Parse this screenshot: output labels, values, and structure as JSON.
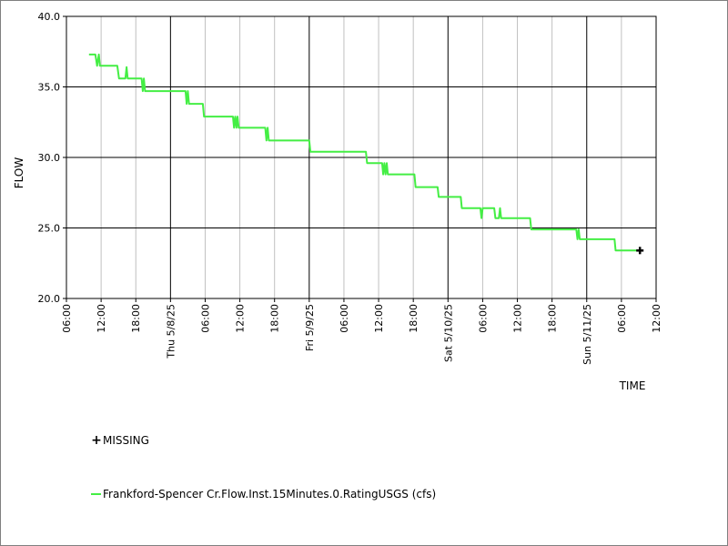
{
  "chart_data": {
    "type": "line",
    "ylabel": "FLOW",
    "xlabel": "TIME",
    "ylim": [
      20.0,
      40.0
    ],
    "yticks": [
      "20.0",
      "25.0",
      "30.0",
      "35.0",
      "40.0"
    ],
    "xlim_hours": [
      0,
      78
    ],
    "xticks": [
      {
        "h": 0,
        "label": "06:00"
      },
      {
        "h": 6,
        "label": "12:00"
      },
      {
        "h": 12,
        "label": "18:00"
      },
      {
        "h": 18,
        "label": "Thu 5/8/25"
      },
      {
        "h": 24,
        "label": "06:00"
      },
      {
        "h": 30,
        "label": "12:00"
      },
      {
        "h": 36,
        "label": "18:00"
      },
      {
        "h": 42,
        "label": "Fri 5/9/25"
      },
      {
        "h": 48,
        "label": "06:00"
      },
      {
        "h": 54,
        "label": "12:00"
      },
      {
        "h": 60,
        "label": "18:00"
      },
      {
        "h": 66,
        "label": "Sat 5/10/25"
      },
      {
        "h": 72,
        "label": "06:00"
      },
      {
        "h": 78,
        "label": "12:00"
      },
      {
        "h": 84,
        "label": "18:00"
      },
      {
        "h": 90,
        "label": "Sun 5/11/25"
      },
      {
        "h": 96,
        "label": "06:00"
      },
      {
        "h": 102,
        "label": "12:00"
      }
    ],
    "grid": true,
    "series": [
      {
        "name": "Frankford-Spencer Cr.Flow.Inst.15Minutes.0.RatingUSGS (cfs)",
        "color": "#44ee44",
        "points": [
          [
            3.9,
            37.3
          ],
          [
            5.0,
            37.3
          ],
          [
            5.3,
            36.5
          ],
          [
            5.6,
            37.3
          ],
          [
            5.8,
            36.5
          ],
          [
            8.8,
            36.5
          ],
          [
            9.1,
            35.6
          ],
          [
            10.2,
            35.6
          ],
          [
            10.4,
            36.4
          ],
          [
            10.6,
            35.6
          ],
          [
            13.0,
            35.6
          ],
          [
            13.2,
            34.7
          ],
          [
            13.4,
            35.6
          ],
          [
            13.6,
            34.7
          ],
          [
            20.6,
            34.7
          ],
          [
            20.8,
            33.8
          ],
          [
            21.0,
            34.7
          ],
          [
            21.2,
            33.8
          ],
          [
            23.6,
            33.8
          ],
          [
            23.8,
            32.9
          ],
          [
            28.8,
            32.9
          ],
          [
            29.0,
            32.1
          ],
          [
            29.2,
            32.9
          ],
          [
            29.4,
            32.1
          ],
          [
            29.6,
            32.9
          ],
          [
            29.8,
            32.1
          ],
          [
            34.4,
            32.1
          ],
          [
            34.6,
            31.2
          ],
          [
            34.8,
            32.1
          ],
          [
            35.0,
            31.2
          ],
          [
            42.0,
            31.2
          ],
          [
            42.2,
            30.4
          ],
          [
            51.8,
            30.4
          ],
          [
            52.0,
            29.6
          ],
          [
            54.6,
            29.6
          ],
          [
            54.8,
            28.8
          ],
          [
            55.0,
            29.6
          ],
          [
            55.2,
            28.8
          ],
          [
            55.4,
            29.6
          ],
          [
            55.6,
            28.8
          ],
          [
            60.2,
            28.8
          ],
          [
            60.4,
            27.9
          ],
          [
            64.2,
            27.9
          ],
          [
            64.4,
            27.2
          ],
          [
            68.2,
            27.2
          ],
          [
            68.4,
            26.4
          ],
          [
            71.6,
            26.4
          ],
          [
            71.8,
            25.7
          ],
          [
            72.0,
            26.4
          ],
          [
            74.0,
            26.4
          ],
          [
            74.2,
            25.7
          ],
          [
            74.8,
            25.7
          ],
          [
            75.0,
            26.4
          ],
          [
            75.2,
            25.7
          ],
          [
            80.2,
            25.7
          ],
          [
            80.4,
            24.9
          ],
          [
            88.2,
            24.9
          ],
          [
            88.4,
            24.2
          ],
          [
            88.6,
            24.9
          ],
          [
            88.8,
            24.2
          ],
          [
            94.8,
            24.2
          ],
          [
            95.0,
            23.4
          ],
          [
            99.2,
            23.4
          ]
        ]
      }
    ],
    "missing_points": [
      [
        99.2,
        23.4
      ]
    ],
    "legend": [
      {
        "label": "MISSING",
        "kind": "missing"
      },
      {
        "label": "Frankford-Spencer Cr.Flow.Inst.15Minutes.0.RatingUSGS (cfs)",
        "kind": "series"
      }
    ],
    "colors": {
      "series": "#44ee44",
      "grid_major": "#000000",
      "grid_minor": "#c0c0c0",
      "missing": "#000000"
    }
  }
}
